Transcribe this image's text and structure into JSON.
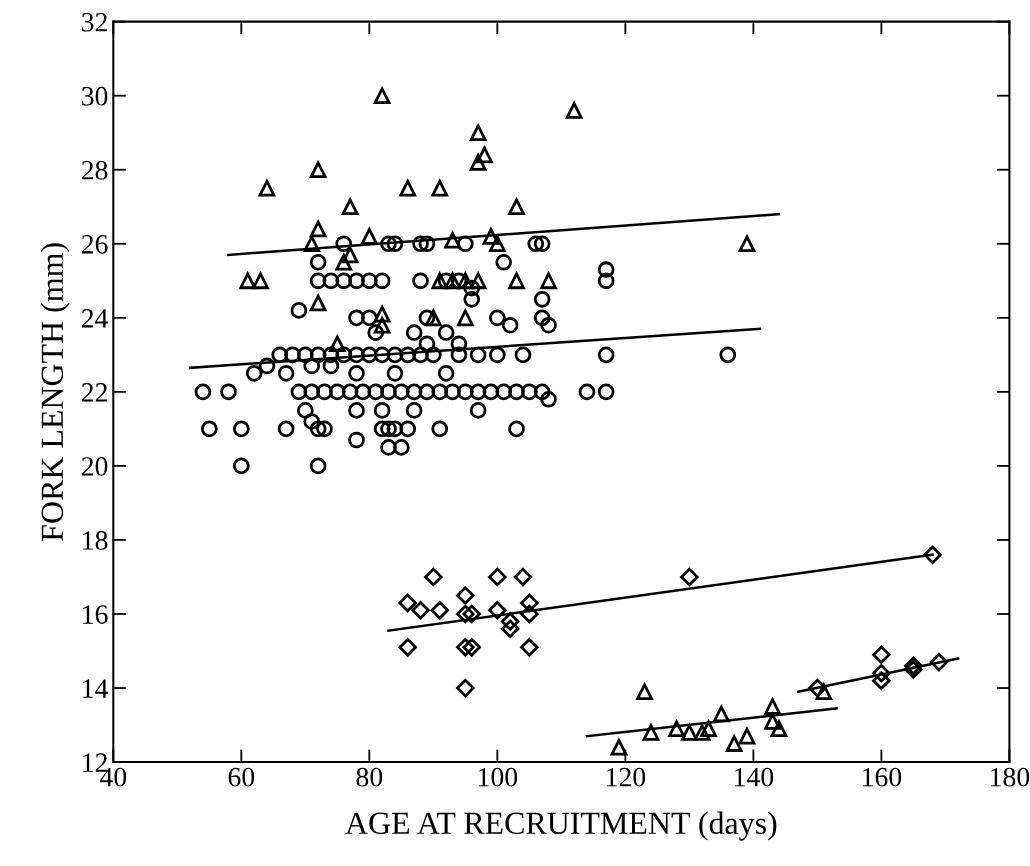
{
  "chart_data": {
    "type": "scatter",
    "xlabel": "AGE AT RECRUITMENT (days)",
    "ylabel": "FORK LENGTH (mm)",
    "xlim": [
      40,
      180
    ],
    "ylim": [
      12,
      32
    ],
    "xticks": [
      40,
      60,
      80,
      100,
      120,
      140,
      160,
      180
    ],
    "yticks": [
      12,
      14,
      16,
      18,
      20,
      22,
      24,
      26,
      28,
      30,
      32
    ],
    "grid": false,
    "legend": false,
    "series": [
      {
        "marker": "triangle",
        "color": "#000000",
        "x": [
          64,
          72,
          82,
          97,
          98,
          97,
          112,
          86,
          91,
          77,
          103,
          72,
          71,
          80,
          93,
          99,
          100,
          139,
          61,
          63,
          72,
          82,
          76,
          91,
          93,
          95,
          97,
          103,
          108,
          90,
          95,
          82,
          75,
          77
        ],
        "values": [
          27.5,
          28,
          30,
          29,
          28.4,
          28.2,
          29.6,
          27.5,
          27.5,
          27,
          27,
          26.4,
          26,
          26.2,
          26.1,
          26.2,
          26,
          26,
          25,
          25,
          24.4,
          24.1,
          25.5,
          25,
          25,
          25,
          25,
          25,
          25,
          24,
          24,
          23.8,
          23.3,
          25.7
        ]
      },
      {
        "marker": "circle",
        "color": "#000000",
        "x": [
          76,
          83,
          84,
          88,
          89,
          95,
          106,
          107,
          72,
          101,
          117,
          117,
          72,
          74,
          76,
          78,
          80,
          82,
          88,
          92,
          94,
          96,
          96,
          107,
          69,
          78,
          80,
          89,
          100,
          107,
          102,
          108,
          81,
          87,
          92,
          89,
          94,
          66,
          68,
          70,
          72,
          74,
          76,
          78,
          80,
          82,
          84,
          86,
          88,
          90,
          94,
          97,
          100,
          104,
          117,
          136,
          64,
          71,
          74,
          62,
          67,
          78,
          84,
          92,
          54,
          58,
          69,
          71,
          73,
          75,
          77,
          79,
          81,
          83,
          85,
          87,
          89,
          91,
          93,
          95,
          97,
          99,
          101,
          103,
          105,
          107,
          114,
          117,
          108,
          70,
          78,
          82,
          87,
          97,
          71,
          55,
          60,
          67,
          72,
          73,
          82,
          83,
          84,
          86,
          91,
          103,
          78,
          83,
          85,
          60,
          72
        ],
        "values": [
          26,
          26,
          26,
          26,
          26,
          26,
          26,
          26,
          25.5,
          25.5,
          25.3,
          25,
          25,
          25,
          25,
          25,
          25,
          25,
          25,
          25,
          25,
          24.8,
          24.5,
          24.5,
          24.2,
          24,
          24,
          24,
          24,
          24,
          23.8,
          23.8,
          23.6,
          23.6,
          23.6,
          23.3,
          23.3,
          23,
          23,
          23,
          23,
          23,
          23,
          23,
          23,
          23,
          23,
          23,
          23,
          23,
          23,
          23,
          23,
          23,
          23,
          23,
          22.7,
          22.7,
          22.7,
          22.5,
          22.5,
          22.5,
          22.5,
          22.5,
          22,
          22,
          22,
          22,
          22,
          22,
          22,
          22,
          22,
          22,
          22,
          22,
          22,
          22,
          22,
          22,
          22,
          22,
          22,
          22,
          22,
          22,
          22,
          22,
          21.8,
          21.5,
          21.5,
          21.5,
          21.5,
          21.5,
          21.2,
          21,
          21,
          21,
          21,
          21,
          21,
          21,
          21,
          21,
          21,
          21,
          20.7,
          20.5,
          20.5,
          20,
          20
        ]
      },
      {
        "marker": "diamond",
        "color": "#000000",
        "x": [
          86,
          88,
          90,
          91,
          86,
          95,
          95,
          96,
          95,
          96,
          95,
          100,
          100,
          102,
          102,
          104,
          105,
          105,
          105,
          130,
          168
        ],
        "values": [
          16.3,
          16.1,
          17,
          16.1,
          15.1,
          16.5,
          16,
          16,
          15.1,
          15.1,
          14,
          17,
          16.1,
          15.8,
          15.6,
          17,
          16.3,
          16,
          15.1,
          17,
          17.6
        ]
      },
      {
        "marker": "triangle",
        "color": "#000000",
        "x": [
          119,
          123,
          124,
          128,
          130,
          132,
          133,
          135,
          137,
          139,
          143,
          143,
          144,
          151
        ],
        "values": [
          12.4,
          13.9,
          12.8,
          12.9,
          12.8,
          12.8,
          12.9,
          13.3,
          12.5,
          12.7,
          13.5,
          13.1,
          12.9,
          13.9
        ]
      },
      {
        "marker": "diamond",
        "color": "#000000",
        "x": [
          150,
          160,
          160,
          160,
          165,
          165,
          169
        ],
        "values": [
          14,
          14.9,
          14.2,
          14.4,
          14.6,
          14.5,
          14.7
        ]
      },
      {
        "type": "line",
        "color": "#000000",
        "x": [
          58,
          144
        ],
        "values": [
          25.7,
          26.8
        ]
      },
      {
        "type": "line",
        "color": "#000000",
        "x": [
          52,
          141
        ],
        "values": [
          22.65,
          23.7
        ]
      },
      {
        "type": "line",
        "color": "#000000",
        "x": [
          83,
          168
        ],
        "values": [
          15.55,
          17.6
        ]
      },
      {
        "type": "line",
        "color": "#000000",
        "x": [
          114,
          153
        ],
        "values": [
          12.7,
          13.45
        ]
      },
      {
        "type": "line",
        "color": "#000000",
        "x": [
          147,
          172
        ],
        "values": [
          13.9,
          14.8
        ]
      }
    ]
  }
}
